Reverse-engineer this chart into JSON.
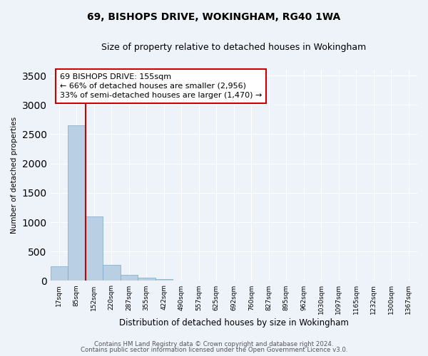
{
  "title": "69, BISHOPS DRIVE, WOKINGHAM, RG40 1WA",
  "subtitle": "Size of property relative to detached houses in Wokingham",
  "xlabel": "Distribution of detached houses by size in Wokingham",
  "ylabel": "Number of detached properties",
  "bar_color": "#b8cfe4",
  "bar_edge_color": "#7aaac8",
  "categories": [
    "17sqm",
    "85sqm",
    "152sqm",
    "220sqm",
    "287sqm",
    "355sqm",
    "422sqm",
    "490sqm",
    "557sqm",
    "625sqm",
    "692sqm",
    "760sqm",
    "827sqm",
    "895sqm",
    "962sqm",
    "1030sqm",
    "1097sqm",
    "1165sqm",
    "1232sqm",
    "1300sqm",
    "1367sqm"
  ],
  "values": [
    250,
    2650,
    1100,
    270,
    100,
    55,
    35,
    5,
    0,
    0,
    0,
    0,
    0,
    0,
    0,
    0,
    0,
    0,
    0,
    0,
    0
  ],
  "ylim": [
    0,
    3600
  ],
  "yticks": [
    0,
    500,
    1000,
    1500,
    2000,
    2500,
    3000,
    3500
  ],
  "property_line_label": "69 BISHOPS DRIVE: 155sqm",
  "annotation_line1": "← 66% of detached houses are smaller (2,956)",
  "annotation_line2": "33% of semi-detached houses are larger (1,470) →",
  "vline_color": "#cc0000",
  "annotation_fontsize": 8,
  "footer1": "Contains HM Land Registry data © Crown copyright and database right 2024.",
  "footer2": "Contains public sector information licensed under the Open Government Licence v3.0.",
  "background_color": "#eef2f9",
  "grid_color": "#ffffff",
  "title_fontsize": 10,
  "subtitle_fontsize": 9
}
